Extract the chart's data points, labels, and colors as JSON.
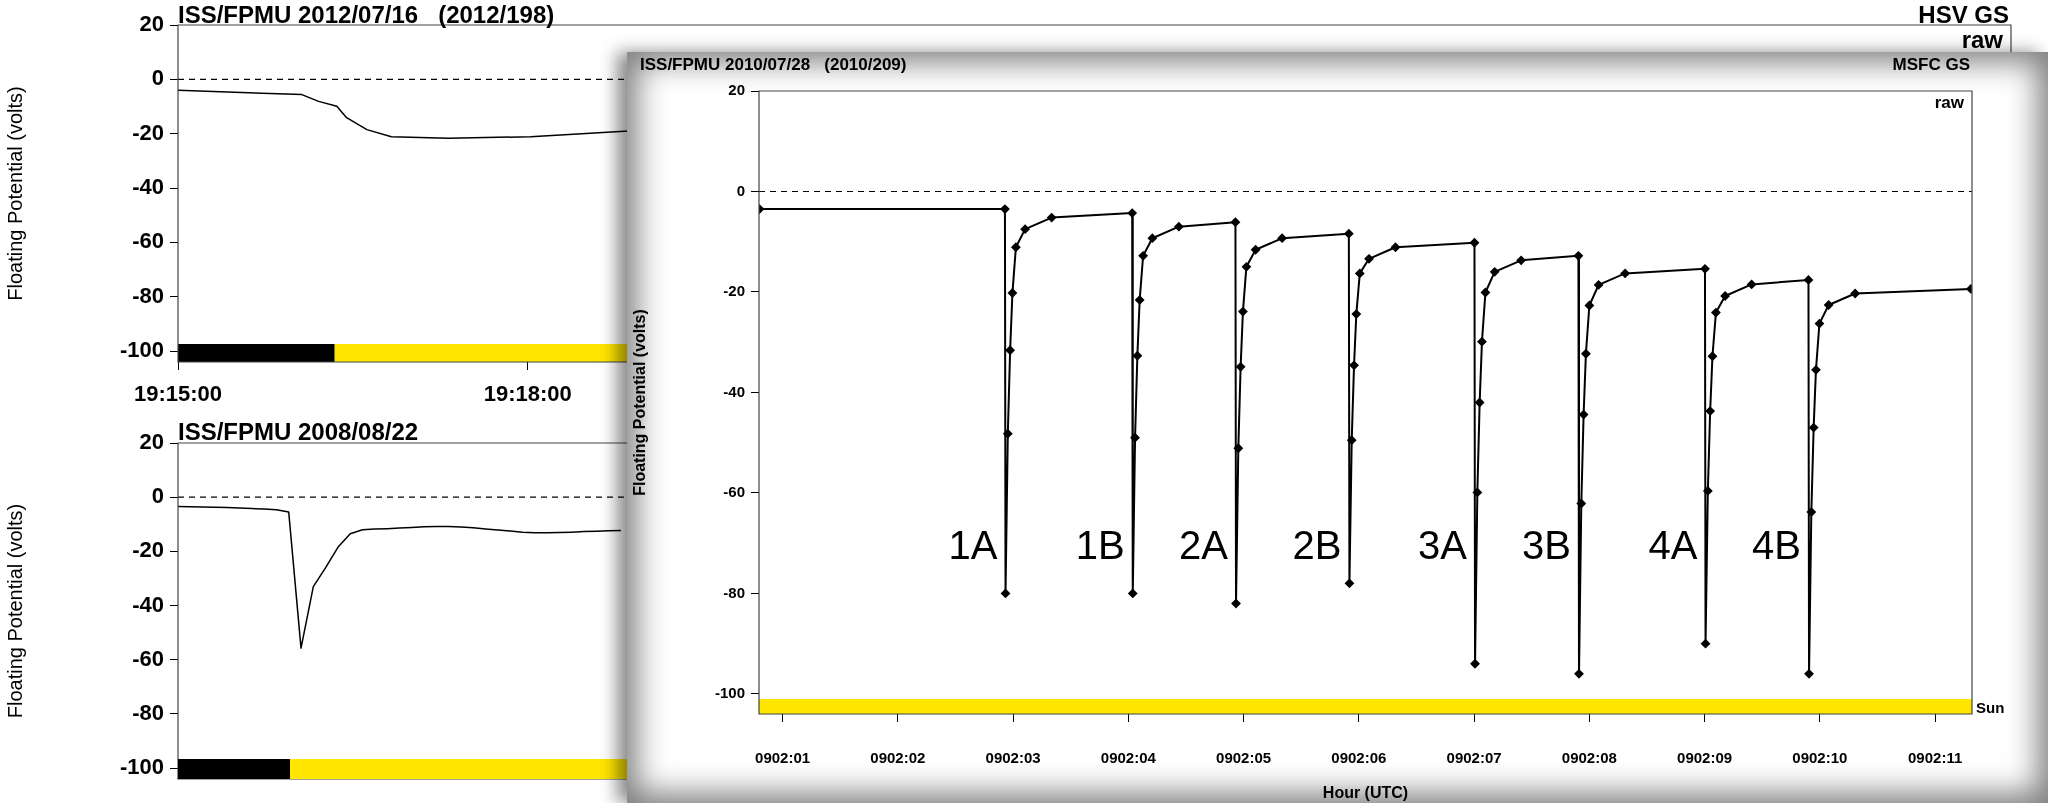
{
  "chart_data": [
    {
      "type": "line",
      "title": "ISS/FPMU 2012/07/16   (2012/198)",
      "ylabel": "Floating Potential (volts)",
      "annotations": [
        "HSV GS",
        "raw"
      ],
      "x": [
        19.25,
        19.2677,
        19.2701,
        19.2727,
        19.2741,
        19.277,
        19.2805,
        19.2887,
        19.3004,
        19.3144
      ],
      "series": [
        {
          "color": "#000000",
          "values": [
            -4,
            -5.6,
            -8.1,
            -9.9,
            -14.1,
            -18.5,
            -21.1,
            -21.7,
            -21.1,
            -19
          ]
        }
      ],
      "xlim": [
        19.25,
        19.512
      ],
      "xticks": [
        {
          "value": 19.25,
          "label": "19:15:00"
        },
        {
          "value": 19.3,
          "label": "19:18:00"
        }
      ],
      "ylim": [
        -104,
        20
      ],
      "yticks": [
        -100,
        -80,
        -60,
        -40,
        -20,
        0,
        20
      ],
      "ref_lines": [
        {
          "axis": "y",
          "value": 0,
          "line_style": "dashed",
          "color": "#000000"
        }
      ],
      "bands": [
        {
          "axis": "x",
          "from": 19.25,
          "to": 19.2724,
          "color": "#000000"
        },
        {
          "axis": "x",
          "from": 19.2724,
          "to": 19.512,
          "color": "#ffe600"
        }
      ],
      "grid": false,
      "marker": "none",
      "line_style": "solid"
    },
    {
      "type": "line",
      "title": "ISS/FPMU 2008/08/22",
      "ylabel": "Floating Potential (volts)",
      "categories": [
        null,
        null,
        null,
        null,
        null,
        null,
        null,
        null,
        null,
        null,
        null,
        null,
        null,
        null,
        null,
        null,
        null,
        null,
        null,
        null,
        null,
        null,
        null,
        null,
        null,
        null,
        null,
        null,
        null,
        null,
        null,
        null,
        null,
        null,
        null,
        null,
        null,
        null,
        null,
        null,
        null,
        null,
        null,
        null,
        null,
        null,
        null,
        null,
        null,
        null,
        null,
        null,
        null,
        null,
        null,
        null,
        null,
        null,
        null,
        null,
        null,
        null,
        null,
        null,
        null,
        null,
        null,
        null,
        null,
        null,
        null,
        null,
        null,
        null,
        null,
        null,
        null,
        null,
        null,
        null,
        null,
        null,
        null,
        null,
        null,
        null,
        null,
        null,
        null,
        null,
        null,
        null,
        null,
        null,
        null,
        null,
        null,
        null,
        null,
        null,
        null,
        null,
        null,
        null,
        null,
        null,
        null,
        null,
        null,
        null,
        null,
        null,
        null,
        null,
        null,
        null,
        null,
        null,
        null,
        null,
        null,
        null,
        null,
        null,
        null,
        null,
        null,
        null,
        null,
        null,
        null,
        null,
        null,
        null,
        null,
        null,
        null,
        null,
        null,
        null,
        null,
        null,
        null,
        null,
        null,
        null,
        null,
        null,
        null,
        null
      ],
      "series": [
        {
          "color": "#000000",
          "values": [
            -3.4,
            -3.5,
            -3.6,
            -3.7,
            -3.8,
            -4.0,
            -4.2,
            -4.4,
            -4.6,
            -5.5,
            -55.7,
            -33,
            -26,
            -18.5,
            -13.5,
            -12.0,
            -11.7,
            -11.6,
            -11.4,
            -11.2,
            -10.9,
            -10.8,
            -10.8,
            -11.0,
            -11.3,
            -11.7,
            -12.1,
            -12.5,
            -12.9,
            -13.1,
            -13.1,
            -13.0,
            -12.9,
            -12.7,
            -12.6,
            -12.4,
            -12.3,
            null,
            null,
            null,
            null,
            null,
            null,
            null,
            null,
            null,
            null,
            null,
            null,
            null,
            null,
            null,
            null,
            null,
            null,
            null,
            null,
            null,
            null,
            null,
            null,
            null,
            null,
            null,
            null,
            null,
            null,
            null,
            null,
            null,
            null,
            null,
            null,
            null,
            null,
            null,
            null,
            null,
            null,
            null,
            null,
            null,
            null,
            null,
            null,
            null,
            null,
            null,
            null,
            null,
            null,
            null,
            null,
            null,
            null,
            null,
            null,
            null,
            null,
            null,
            null,
            null,
            null,
            null,
            null,
            null,
            null,
            null,
            null,
            null,
            null,
            null,
            null,
            null,
            null,
            null,
            null,
            null,
            null,
            null,
            null,
            null,
            null,
            null,
            null,
            null,
            null,
            null,
            null,
            null,
            null,
            null,
            null,
            null,
            null,
            null,
            null,
            null,
            null,
            null,
            null,
            null,
            null,
            null,
            null,
            null,
            null,
            null,
            null,
            null
          ]
        }
      ],
      "ylim": [
        -104,
        20
      ],
      "yticks": [
        -100,
        -80,
        -60,
        -40,
        -20,
        0,
        20
      ],
      "tick_labels": "y",
      "ref_lines": [
        {
          "axis": "y",
          "value": 0,
          "line_style": "dashed",
          "color": "#000000"
        }
      ],
      "grid": false,
      "marker": "none",
      "line_style": "solid"
    },
    {
      "type": "line",
      "title": "ISS/FPMU 2010/07/28   (2010/209)",
      "xlabel": "Hour (UTC)",
      "ylabel": "Floating Potential (volts)",
      "annotations": [
        "MSFC GS",
        "raw",
        {
          "text": "1A",
          "x": "2010-07-28T09:02:02.934",
          "y": -71
        },
        {
          "text": "1B",
          "x": "2010-07-28T09:02:04.038",
          "y": -71
        },
        {
          "text": "2A",
          "x": "2010-07-28T09:02:04.934",
          "y": -71
        },
        {
          "text": "2B",
          "x": "2010-07-28T09:02:05.918",
          "y": -71
        },
        {
          "text": "3A",
          "x": "2010-07-28T09:02:07.008",
          "y": -71
        },
        {
          "text": "3B",
          "x": "2010-07-28T09:02:07.910",
          "y": -71
        },
        {
          "text": "4A",
          "x": "2010-07-28T09:02:09.008",
          "y": -71
        },
        {
          "text": "4B",
          "x": "2010-07-28T09:02:09.906",
          "y": -71
        }
      ],
      "x": [
        "2010-07-28T09:02:00.800",
        "2010-07-28T09:02:02.929",
        "2010-07-28T09:02:02.934",
        "2010-07-28T09:02:02.954",
        "2010-07-28T09:02:02.974",
        "2010-07-28T09:02:02.994",
        "2010-07-28T09:02:03.024",
        "2010-07-28T09:02:03.104",
        "2010-07-28T09:02:03.334",
        "2010-07-28T09:02:04.033",
        "2010-07-28T09:02:04.038",
        "2010-07-28T09:02:04.058",
        "2010-07-28T09:02:04.078",
        "2010-07-28T09:02:04.098",
        "2010-07-28T09:02:04.128",
        "2010-07-28T09:02:04.208",
        "2010-07-28T09:02:04.438",
        "2010-07-28T09:02:04.929",
        "2010-07-28T09:02:04.934",
        "2010-07-28T09:02:04.954",
        "2010-07-28T09:02:04.974",
        "2010-07-28T09:02:04.994",
        "2010-07-28T09:02:05.024",
        "2010-07-28T09:02:05.104",
        "2010-07-28T09:02:05.334",
        "2010-07-28T09:02:05.913",
        "2010-07-28T09:02:05.918",
        "2010-07-28T09:02:05.938",
        "2010-07-28T09:02:05.958",
        "2010-07-28T09:02:05.978",
        "2010-07-28T09:02:06.008",
        "2010-07-28T09:02:06.088",
        "2010-07-28T09:02:06.318",
        "2010-07-28T09:02:07.003",
        "2010-07-28T09:02:07.008",
        "2010-07-28T09:02:07.028",
        "2010-07-28T09:02:07.048",
        "2010-07-28T09:02:07.068",
        "2010-07-28T09:02:07.098",
        "2010-07-28T09:02:07.178",
        "2010-07-28T09:02:07.408",
        "2010-07-28T09:02:07.905",
        "2010-07-28T09:02:07.910",
        "2010-07-28T09:02:07.930",
        "2010-07-28T09:02:07.950",
        "2010-07-28T09:02:07.970",
        "2010-07-28T09:02:08.000",
        "2010-07-28T09:02:08.080",
        "2010-07-28T09:02:08.310",
        "2010-07-28T09:02:09.003",
        "2010-07-28T09:02:09.008",
        "2010-07-28T09:02:09.028",
        "2010-07-28T09:02:09.048",
        "2010-07-28T09:02:09.068",
        "2010-07-28T09:02:09.098",
        "2010-07-28T09:02:09.178",
        "2010-07-28T09:02:09.408",
        "2010-07-28T09:02:09.901",
        "2010-07-28T09:02:09.906",
        "2010-07-28T09:02:09.926",
        "2010-07-28T09:02:09.946",
        "2010-07-28T09:02:09.966",
        "2010-07-28T09:02:09.996",
        "2010-07-28T09:02:10.076",
        "2010-07-28T09:02:10.306",
        "2010-07-28T09:02:11.310"
      ],
      "series": [
        {
          "color": "#000000",
          "values": [
            -3.5,
            -3.5,
            -80,
            -48.2,
            -31.6,
            -20.2,
            -11.1,
            -7.5,
            -5.2,
            -4.3,
            -80,
            -49,
            -32.7,
            -21.6,
            -12.8,
            -9.3,
            -7,
            -6.1,
            -82,
            -51.1,
            -34.9,
            -23.9,
            -15,
            -11.6,
            -9.3,
            -8.4,
            -78,
            -49.5,
            -34.6,
            -24.4,
            -16.3,
            -13.4,
            -11.1,
            -10.2,
            -94,
            -59.9,
            -42,
            -29.9,
            -20.1,
            -16,
            -13.7,
            -12.8,
            -96,
            -62.1,
            -44.4,
            -32.3,
            -22.7,
            -18.6,
            -16.3,
            -15.4,
            -90,
            -59.6,
            -43.7,
            -32.8,
            -24.1,
            -20.8,
            -18.5,
            -17.6,
            -96,
            -63.8,
            -47,
            -35.5,
            -26.3,
            -22.6,
            -20.3,
            -19.4
          ]
        }
      ],
      "xlim": [
        "2010-07-28T09:02:00.795",
        "2010-07-28T09:02:11.320"
      ],
      "xticks": [
        {
          "value": "2010-07-28T09:02:01",
          "label": "0902:01"
        },
        {
          "value": "2010-07-28T09:02:02",
          "label": "0902:02"
        },
        {
          "value": "2010-07-28T09:02:03",
          "label": "0902:03"
        },
        {
          "value": "2010-07-28T09:02:04",
          "label": "0902:04"
        },
        {
          "value": "2010-07-28T09:02:05",
          "label": "0902:05"
        },
        {
          "value": "2010-07-28T09:02:06",
          "label": "0902:06"
        },
        {
          "value": "2010-07-28T09:02:07",
          "label": "0902:07"
        },
        {
          "value": "2010-07-28T09:02:08",
          "label": "0902:08"
        },
        {
          "value": "2010-07-28T09:02:09",
          "label": "0902:09"
        },
        {
          "value": "2010-07-28T09:02:10",
          "label": "0902:10"
        },
        {
          "value": "2010-07-28T09:02:11",
          "label": "0902:11"
        }
      ],
      "ylim": [
        -104,
        20
      ],
      "yticks": [
        -100,
        -80,
        -60,
        -40,
        -20,
        0,
        20
      ],
      "ref_lines": [
        {
          "axis": "y",
          "value": 0,
          "line_style": "dashed",
          "color": "#000000"
        }
      ],
      "bands": [
        {
          "axis": "y",
          "from": -104,
          "to": -101,
          "color": "#ffe600",
          "label": "Sun"
        }
      ],
      "grid": false,
      "marker": "diamond",
      "line_style": "solid"
    }
  ]
}
